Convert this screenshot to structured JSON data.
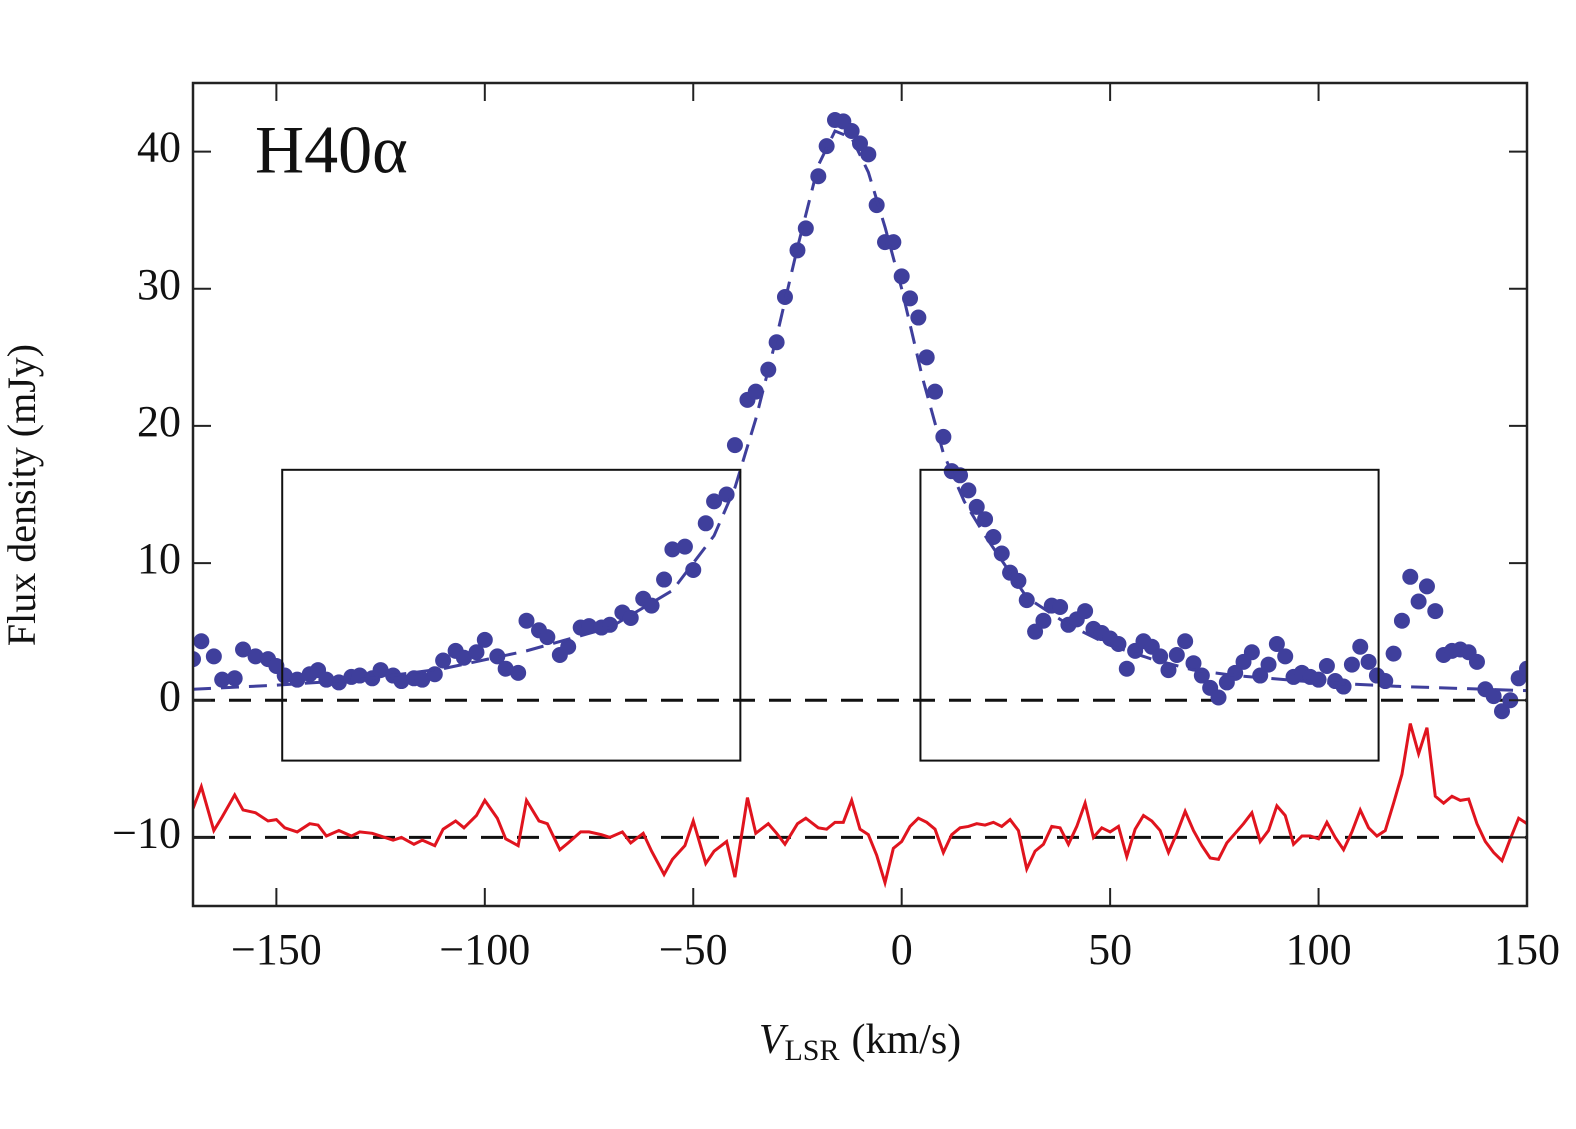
{
  "chart_data": {
    "type": "scatter",
    "annotation": "H40α",
    "y_label": "Flux density (mJy)",
    "x_label": {
      "symbol": "V",
      "subscript": "LSR",
      "unit": "(km/s)"
    },
    "xlim": [
      -170,
      150
    ],
    "ylim": [
      -15,
      45
    ],
    "xticks": [
      {
        "value": -150,
        "label": "−150"
      },
      {
        "value": -100,
        "label": "−100"
      },
      {
        "value": -50,
        "label": "−50"
      },
      0,
      50,
      100,
      150
    ],
    "yticks": [
      {
        "value": -10,
        "label": "−10"
      },
      0,
      10,
      20,
      30,
      40
    ],
    "hlines": [
      0,
      -10
    ],
    "boxes": [
      {
        "x": [
          -148.6,
          -38.7
        ],
        "y": [
          -4.4,
          16.8
        ]
      },
      {
        "x": [
          4.5,
          114.4
        ],
        "y": [
          -4.4,
          16.8
        ]
      }
    ],
    "series": [
      {
        "style": "points",
        "color": "#3f3f9c",
        "x": [
          -170,
          -168,
          -165,
          -163,
          -160,
          -158,
          -155,
          -152,
          -150,
          -148,
          -145,
          -142,
          -140,
          -138,
          -135,
          -132,
          -130,
          -127,
          -125,
          -122,
          -120,
          -117,
          -115,
          -112,
          -110,
          -107,
          -105,
          -102,
          -100,
          -97,
          -95,
          -92,
          -90,
          -87,
          -85,
          -82,
          -80,
          -77,
          -75,
          -72,
          -70,
          -67,
          -65,
          -62,
          -60,
          -57,
          -55,
          -52,
          -50,
          -47,
          -45,
          -42,
          -40,
          -37,
          -35,
          -32,
          -30,
          -28,
          -25,
          -23,
          -20,
          -18,
          -16,
          -14,
          -12,
          -10,
          -8,
          -6,
          -4,
          -2,
          0,
          2,
          4,
          6,
          8,
          10,
          12,
          14,
          16,
          18,
          20,
          22,
          24,
          26,
          28,
          30,
          32,
          34,
          36,
          38,
          40,
          42,
          44,
          46,
          48,
          50,
          52,
          54,
          56,
          58,
          60,
          62,
          64,
          66,
          68,
          70,
          72,
          74,
          76,
          78,
          80,
          82,
          84,
          86,
          88,
          90,
          92,
          94,
          96,
          98,
          100,
          102,
          104,
          106,
          108,
          110,
          112,
          114,
          116,
          118,
          120,
          122,
          124,
          126,
          128,
          130,
          132,
          134,
          136,
          138,
          140,
          142,
          144,
          146,
          148,
          150
        ],
        "values": [
          3,
          4.3,
          3.2,
          1.5,
          1.6,
          3.7,
          3.2,
          3,
          2.5,
          1.8,
          1.5,
          1.9,
          2.2,
          1.5,
          1.3,
          1.7,
          1.8,
          1.6,
          2.2,
          1.8,
          1.4,
          1.6,
          1.5,
          1.9,
          2.9,
          3.6,
          3.1,
          3.5,
          4.4,
          3.2,
          2.3,
          2,
          5.8,
          5.1,
          4.6,
          3.3,
          3.9,
          5.3,
          5.4,
          5.3,
          5.5,
          6.4,
          6,
          7.4,
          6.9,
          8.8,
          11,
          11.2,
          9.5,
          12.9,
          14.5,
          15,
          18.6,
          21.9,
          22.5,
          24.1,
          26.1,
          29.4,
          32.8,
          34.4,
          38.2,
          40.4,
          42.3,
          42.2,
          41.5,
          40.6,
          39.8,
          36.1,
          33.4,
          33.4,
          30.9,
          29.3,
          27.9,
          25,
          22.5,
          19.2,
          16.7,
          16.4,
          15.3,
          14.1,
          13.2,
          11.9,
          10.7,
          9.3,
          8.7,
          7.3,
          5,
          5.8,
          6.9,
          6.8,
          5.5,
          5.9,
          6.5,
          5.2,
          4.9,
          4.5,
          4.1,
          2.3,
          3.6,
          4.3,
          3.9,
          3.2,
          2.2,
          3.3,
          4.3,
          2.7,
          1.8,
          0.9,
          0.2,
          1.3,
          2,
          2.8,
          3.5,
          1.8,
          2.6,
          4.1,
          3.2,
          1.7,
          2,
          1.7,
          1.5,
          2.5,
          1.4,
          1,
          2.6,
          3.9,
          2.8,
          1.8,
          1.4,
          3.4,
          5.8,
          9,
          7.2,
          8.3,
          6.5,
          3.3,
          3.6,
          3.7,
          3.5,
          2.8,
          0.8,
          0.3,
          -0.8,
          0,
          1.6,
          2.3
        ]
      },
      {
        "style": "dashed",
        "color": "#3f3f9c",
        "x": [
          -170,
          -150,
          -130,
          -110,
          -90,
          -70,
          -55,
          -45,
          -40,
          -35,
          -30,
          -25,
          -20,
          -16,
          -12,
          -8,
          -4,
          0,
          5,
          10,
          15,
          20,
          30,
          40,
          50,
          60,
          70,
          80,
          100,
          120,
          150
        ],
        "values": [
          0.8,
          1.1,
          1.5,
          2.3,
          3.6,
          5.3,
          8,
          12,
          15.5,
          20.5,
          26.5,
          33,
          39,
          41.5,
          41,
          38.5,
          34.5,
          30,
          23.5,
          18,
          14.5,
          12,
          7.5,
          5.5,
          4,
          3,
          2.2,
          1.8,
          1.3,
          1,
          0.7
        ]
      },
      {
        "style": "line",
        "color": "#e0141e",
        "x": [
          -170,
          -168,
          -165,
          -163,
          -160,
          -158,
          -155,
          -152,
          -150,
          -148,
          -145,
          -142,
          -140,
          -138,
          -135,
          -132,
          -130,
          -127,
          -125,
          -122,
          -120,
          -117,
          -115,
          -112,
          -110,
          -107,
          -105,
          -102,
          -100,
          -97,
          -95,
          -92,
          -90,
          -87,
          -85,
          -82,
          -80,
          -77,
          -75,
          -72,
          -70,
          -67,
          -65,
          -62,
          -60,
          -57,
          -55,
          -52,
          -50,
          -47,
          -45,
          -42,
          -40,
          -37,
          -35,
          -32,
          -30,
          -28,
          -25,
          -23,
          -20,
          -18,
          -16,
          -14,
          -12,
          -10,
          -8,
          -6,
          -4,
          -2,
          0,
          2,
          4,
          6,
          8,
          10,
          12,
          14,
          16,
          18,
          20,
          22,
          24,
          26,
          28,
          30,
          32,
          34,
          36,
          38,
          40,
          42,
          44,
          46,
          48,
          50,
          52,
          54,
          56,
          58,
          60,
          62,
          64,
          66,
          68,
          70,
          72,
          74,
          76,
          78,
          80,
          82,
          84,
          86,
          88,
          90,
          92,
          94,
          96,
          98,
          100,
          102,
          104,
          106,
          108,
          110,
          112,
          114,
          116,
          118,
          120,
          122,
          124,
          126,
          128,
          130,
          132,
          134,
          136,
          138,
          140,
          142,
          144,
          146,
          148,
          150
        ],
        "values": [
          -7.9,
          -6.3,
          -9.5,
          -8.5,
          -6.9,
          -8,
          -8.2,
          -8.8,
          -8.7,
          -9.3,
          -9.6,
          -9,
          -9.1,
          -9.9,
          -9.5,
          -9.9,
          -9.6,
          -9.7,
          -9.9,
          -10.2,
          -10,
          -10.5,
          -10.2,
          -10.6,
          -9.4,
          -8.8,
          -9.3,
          -8.4,
          -7.3,
          -8.6,
          -10.1,
          -10.6,
          -7.3,
          -8.8,
          -9,
          -10.9,
          -10.4,
          -9.6,
          -9.6,
          -9.8,
          -10,
          -9.6,
          -10.4,
          -9.7,
          -11,
          -12.7,
          -11.6,
          -10.6,
          -8.8,
          -11.9,
          -11,
          -10.3,
          -12.9,
          -7.1,
          -9.7,
          -9,
          -9.7,
          -10.5,
          -9,
          -8.6,
          -9.3,
          -9.4,
          -8.9,
          -8.9,
          -7.3,
          -9.4,
          -9.8,
          -11.3,
          -13.3,
          -10.8,
          -10.3,
          -9.2,
          -8.6,
          -8.9,
          -9.4,
          -11.1,
          -9.8,
          -9.3,
          -9.2,
          -9,
          -9.1,
          -8.9,
          -9.2,
          -8.7,
          -9.5,
          -12.3,
          -11,
          -10.5,
          -9.2,
          -9.3,
          -10.5,
          -9.2,
          -7.5,
          -10,
          -9.3,
          -9.6,
          -9.2,
          -11.4,
          -9.4,
          -8.4,
          -8.8,
          -9.5,
          -11.1,
          -9.7,
          -8.1,
          -9.5,
          -10.6,
          -11.5,
          -11.6,
          -10.4,
          -9.7,
          -9,
          -8.2,
          -10.3,
          -9.5,
          -7.7,
          -8.4,
          -10.5,
          -9.9,
          -9.9,
          -10.1,
          -8.9,
          -10,
          -10.9,
          -9.6,
          -8,
          -9.3,
          -9.9,
          -9.5,
          -7.5,
          -5.4,
          -1.7,
          -3.9,
          -2,
          -7,
          -7.5,
          -7,
          -7.3,
          -7.2,
          -9,
          -10.3,
          -11.1,
          -11.7,
          -10.1,
          -8.6,
          -9
        ]
      }
    ]
  }
}
